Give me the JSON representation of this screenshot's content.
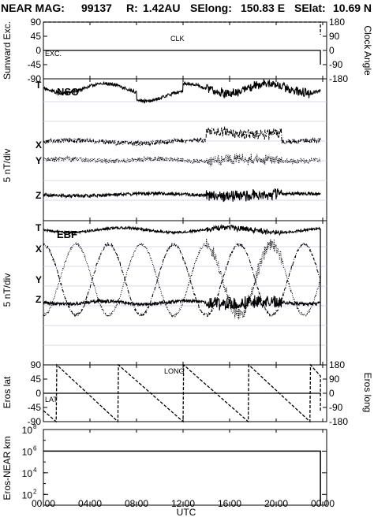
{
  "chart_data": {
    "type": "line",
    "header": {
      "prefix": "NEAR MAG:",
      "day_code": "99137",
      "distance_label": "R:",
      "distance": "1.42AU",
      "selong_label": "SElong:",
      "selong": "150.83 E",
      "selat_label": "SElat:",
      "selat": "10.69 N"
    },
    "x_axis": {
      "label": "UTC",
      "ticks": [
        "00:00",
        "04:00",
        "08:00",
        "12:00",
        "16:00",
        "20:00",
        "00:00"
      ],
      "hours": [
        0,
        4,
        8,
        12,
        16,
        20,
        24
      ],
      "range": [
        0,
        24
      ]
    },
    "panels": [
      {
        "id": "sunward",
        "ylabel_left": "Sunward Exc.",
        "ylabel_right": "Clock Angle",
        "left_ticks": [
          "90",
          "45",
          "0",
          "-45",
          "-90"
        ],
        "right_ticks": [
          "180",
          "90",
          "0",
          "-90",
          "-180"
        ],
        "left_range": [
          -90,
          90
        ],
        "right_range": [
          -180,
          180
        ],
        "series": [
          {
            "name": "CLK",
            "axis": "right",
            "style": "dashed",
            "x": [
              0,
              23.8,
              23.8
            ],
            "y": [
              180,
              180,
              100
            ]
          },
          {
            "name": "EXC.",
            "axis": "left",
            "style": "solid",
            "x": [
              0,
              23.8,
              23.8
            ],
            "y": [
              0,
              0,
              -45
            ]
          }
        ]
      },
      {
        "id": "nso",
        "title": "NSO",
        "ylabel_left": "5 nT/div",
        "components": [
          {
            "name": "T",
            "style": "solid"
          },
          {
            "name": "X",
            "style": "dash-dot"
          },
          {
            "name": "Y",
            "style": "dotted"
          },
          {
            "name": "Z",
            "style": "solid"
          }
        ]
      },
      {
        "id": "ebf",
        "title": "EBF",
        "ylabel_left": "5 nT/div",
        "components": [
          {
            "name": "T",
            "style": "solid"
          },
          {
            "name": "X",
            "style": "dash-dot"
          },
          {
            "name": "Y",
            "style": "dotted"
          },
          {
            "name": "Z",
            "style": "solid"
          }
        ]
      },
      {
        "id": "eros",
        "ylabel_left": "Eros lat",
        "ylabel_right": "Eros long",
        "left_ticks": [
          "90",
          "45",
          "0",
          "-45",
          "-90"
        ],
        "right_ticks": [
          "180",
          "90",
          "0",
          "-90",
          "-180"
        ],
        "left_range": [
          -90,
          90
        ],
        "right_range": [
          -180,
          180
        ],
        "series": [
          {
            "name": "LONG",
            "axis": "right",
            "style": "dashed",
            "x": [
              0,
              1.1,
              1.15,
              6.4,
              6.45,
              12.0,
              12.05,
              17.6,
              17.65,
              22.9,
              22.95,
              23.8,
              23.8
            ],
            "y": [
              -110,
              -180,
              180,
              -180,
              180,
              -180,
              180,
              -180,
              180,
              -180,
              180,
              110,
              -120
            ]
          },
          {
            "name": "LAT",
            "axis": "left",
            "style": "solid",
            "x": [
              0,
              23.8,
              23.8
            ],
            "y": [
              0,
              0,
              -5
            ]
          }
        ]
      },
      {
        "id": "distance",
        "ylabel_left": "Eros-NEAR km",
        "ticks_base": "10",
        "tick_exponents": [
          "8",
          "6",
          "4",
          "2"
        ],
        "scale": "log",
        "range": [
          10,
          100000000
        ],
        "series": [
          {
            "name": "distance",
            "style": "solid",
            "x": [
              0,
              23.8,
              23.8
            ],
            "y": [
              1000000,
              1000000,
              10
            ]
          }
        ]
      }
    ]
  }
}
